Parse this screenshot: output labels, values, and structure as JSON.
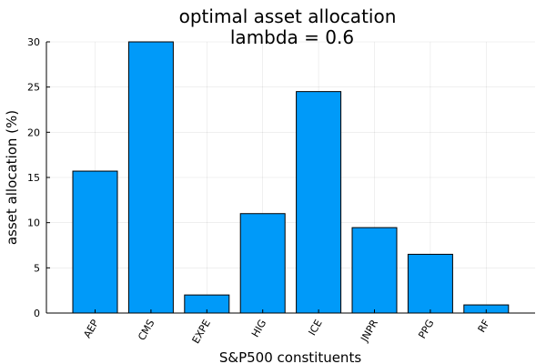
{
  "chart_data": {
    "type": "bar",
    "title": "optimal asset allocation",
    "subtitle": "lambda = 0.6",
    "xlabel": "S&P500 constituents",
    "ylabel": "asset allocation (%)",
    "categories": [
      "AEP",
      "CMS",
      "EXPE",
      "HIG",
      "ICE",
      "JNPR",
      "PPG",
      "RF"
    ],
    "values": [
      15.7,
      30.0,
      2.0,
      11.0,
      24.5,
      9.45,
      6.5,
      0.9
    ],
    "ylim": [
      0,
      30
    ],
    "yticks": [
      0,
      5,
      10,
      15,
      20,
      25,
      30
    ],
    "grid": true,
    "legend": "none",
    "bar_color": "#009AF9"
  }
}
